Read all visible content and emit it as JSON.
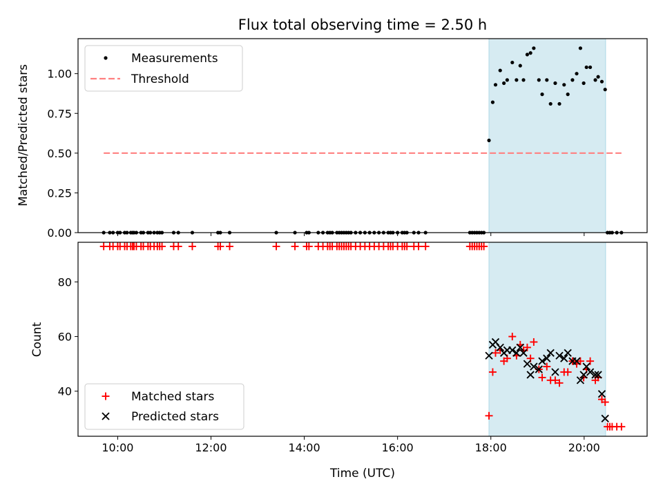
{
  "chart_data": [
    {
      "type": "scatter",
      "title": "Flux total observing time = 2.50 h",
      "xlabel": "",
      "ylabel": "Matched/Predicted stars",
      "xlim": [
        9.15,
        21.35
      ],
      "ylim": [
        0.0,
        1.22
      ],
      "yticks": [
        0.0,
        0.25,
        0.5,
        0.75,
        1.0
      ],
      "ytick_labels": [
        "0.00",
        "0.25",
        "0.50",
        "0.75",
        "1.00"
      ],
      "xtick_values": [
        10,
        12,
        14,
        16,
        18,
        20
      ],
      "shaded_interval": [
        17.96,
        20.46
      ],
      "legend": {
        "position": "upper left",
        "entries": [
          "Measurements",
          "Threshold"
        ]
      },
      "threshold": {
        "name": "Threshold",
        "x": [
          9.7,
          20.8
        ],
        "y": 0.5,
        "color": "#ff7f7f"
      },
      "measurements": {
        "name": "Measurements",
        "x": [
          9.7,
          9.83,
          9.9,
          10.0,
          10.05,
          10.15,
          10.2,
          10.28,
          10.32,
          10.35,
          10.4,
          10.5,
          10.55,
          10.65,
          10.7,
          10.78,
          10.85,
          10.9,
          10.95,
          11.2,
          11.3,
          11.6,
          12.15,
          12.2,
          12.4,
          13.4,
          13.8,
          14.05,
          14.1,
          14.3,
          14.4,
          14.5,
          14.55,
          14.6,
          14.7,
          14.75,
          14.8,
          14.85,
          14.9,
          14.95,
          15.0,
          15.1,
          15.2,
          15.3,
          15.4,
          15.5,
          15.6,
          15.7,
          15.8,
          15.85,
          15.9,
          16.0,
          16.1,
          16.15,
          16.2,
          16.35,
          16.45,
          16.6,
          17.55,
          17.6,
          17.65,
          17.7,
          17.75,
          17.8,
          17.85,
          17.96,
          18.04,
          18.1,
          18.2,
          18.28,
          18.35,
          18.46,
          18.55,
          18.63,
          18.7,
          18.78,
          18.85,
          18.92,
          19.03,
          19.1,
          19.2,
          19.28,
          19.38,
          19.47,
          19.57,
          19.65,
          19.75,
          19.84,
          19.92,
          19.99,
          20.05,
          20.13,
          20.24,
          20.3,
          20.38,
          20.45,
          20.5,
          20.55,
          20.6,
          20.7,
          20.8
        ],
        "y": [
          0,
          0,
          0,
          0,
          0,
          0,
          0,
          0,
          0,
          0,
          0,
          0,
          0,
          0,
          0,
          0,
          0,
          0,
          0,
          0,
          0,
          0,
          0,
          0,
          0,
          0,
          0,
          0,
          0,
          0,
          0,
          0,
          0,
          0,
          0,
          0,
          0,
          0,
          0,
          0,
          0,
          0,
          0,
          0,
          0,
          0,
          0,
          0,
          0,
          0,
          0,
          0,
          0,
          0,
          0,
          0,
          0,
          0,
          0,
          0,
          0,
          0,
          0,
          0,
          0,
          0.58,
          0.82,
          0.93,
          1.02,
          0.94,
          0.96,
          1.07,
          0.96,
          1.05,
          0.96,
          1.12,
          1.13,
          1.16,
          0.96,
          0.87,
          0.96,
          0.81,
          0.94,
          0.81,
          0.93,
          0.87,
          0.96,
          1.0,
          1.16,
          0.94,
          1.04,
          1.04,
          0.96,
          0.98,
          0.95,
          0.9,
          0,
          0,
          0,
          0,
          0
        ]
      }
    },
    {
      "type": "scatter",
      "title": "",
      "xlabel": "Time (UTC)",
      "ylabel": "Count",
      "xlim": [
        9.15,
        21.35
      ],
      "ylim": [
        23.5,
        94.5
      ],
      "yticks": [
        40,
        60,
        80
      ],
      "ytick_labels": [
        "40",
        "60",
        "80"
      ],
      "xtick_values": [
        10,
        12,
        14,
        16,
        18,
        20
      ],
      "xtick_labels": [
        "10:00",
        "12:00",
        "14:00",
        "16:00",
        "18:00",
        "20:00"
      ],
      "shaded_interval": [
        17.96,
        20.46
      ],
      "legend": {
        "position": "lower left",
        "entries": [
          "Matched stars",
          "Predicted stars"
        ]
      },
      "series": [
        {
          "name": "Matched stars",
          "marker": "plus",
          "color": "#ff0000",
          "x": [
            9.7,
            9.83,
            9.9,
            10.0,
            10.05,
            10.15,
            10.2,
            10.28,
            10.32,
            10.35,
            10.4,
            10.5,
            10.55,
            10.65,
            10.7,
            10.78,
            10.85,
            10.9,
            10.95,
            11.2,
            11.3,
            11.6,
            12.15,
            12.2,
            12.4,
            13.4,
            13.8,
            14.05,
            14.1,
            14.3,
            14.4,
            14.5,
            14.55,
            14.6,
            14.7,
            14.75,
            14.8,
            14.85,
            14.9,
            14.95,
            15.0,
            15.1,
            15.2,
            15.3,
            15.4,
            15.5,
            15.6,
            15.7,
            15.8,
            15.85,
            15.9,
            16.0,
            16.1,
            16.15,
            16.2,
            16.35,
            16.45,
            16.6,
            17.55,
            17.6,
            17.65,
            17.7,
            17.75,
            17.8,
            17.85,
            17.96,
            18.04,
            18.1,
            18.2,
            18.28,
            18.35,
            18.46,
            18.55,
            18.63,
            18.7,
            18.78,
            18.85,
            18.92,
            19.03,
            19.1,
            19.2,
            19.28,
            19.38,
            19.47,
            19.57,
            19.65,
            19.75,
            19.84,
            19.92,
            19.99,
            20.05,
            20.13,
            20.24,
            20.3,
            20.38,
            20.45,
            20.5,
            20.55,
            20.6,
            20.7,
            20.8
          ],
          "y": [
            93,
            93,
            93,
            93,
            93,
            93,
            93,
            93,
            93,
            93,
            93,
            93,
            93,
            93,
            93,
            93,
            93,
            93,
            93,
            93,
            93,
            93,
            93,
            93,
            93,
            93,
            93,
            93,
            93,
            93,
            93,
            93,
            93,
            93,
            93,
            93,
            93,
            93,
            93,
            93,
            93,
            93,
            93,
            93,
            93,
            93,
            93,
            93,
            93,
            93,
            93,
            93,
            93,
            93,
            93,
            93,
            93,
            93,
            93,
            93,
            93,
            93,
            93,
            93,
            93,
            31,
            47,
            54,
            55,
            51,
            52,
            60,
            53,
            57,
            55,
            56,
            52,
            58,
            48,
            45,
            49,
            44,
            44,
            43,
            47,
            47,
            51,
            50,
            51,
            45,
            48,
            51,
            44,
            45,
            37,
            36,
            27,
            27,
            27,
            27,
            27
          ]
        },
        {
          "name": "Predicted stars",
          "marker": "x",
          "color": "#000000",
          "x": [
            17.96,
            18.04,
            18.1,
            18.2,
            18.28,
            18.35,
            18.46,
            18.55,
            18.63,
            18.7,
            18.78,
            18.85,
            18.92,
            19.03,
            19.1,
            19.2,
            19.28,
            19.38,
            19.47,
            19.57,
            19.65,
            19.75,
            19.84,
            19.92,
            19.99,
            20.05,
            20.13,
            20.24,
            20.3,
            20.38,
            20.45
          ],
          "y": [
            53,
            57,
            58,
            56,
            54,
            55,
            55,
            54,
            56,
            54,
            50,
            46,
            49,
            48,
            51,
            52,
            54,
            47,
            53,
            52,
            54,
            51,
            51,
            44,
            46,
            49,
            47,
            46,
            46,
            39,
            30
          ]
        }
      ]
    }
  ]
}
